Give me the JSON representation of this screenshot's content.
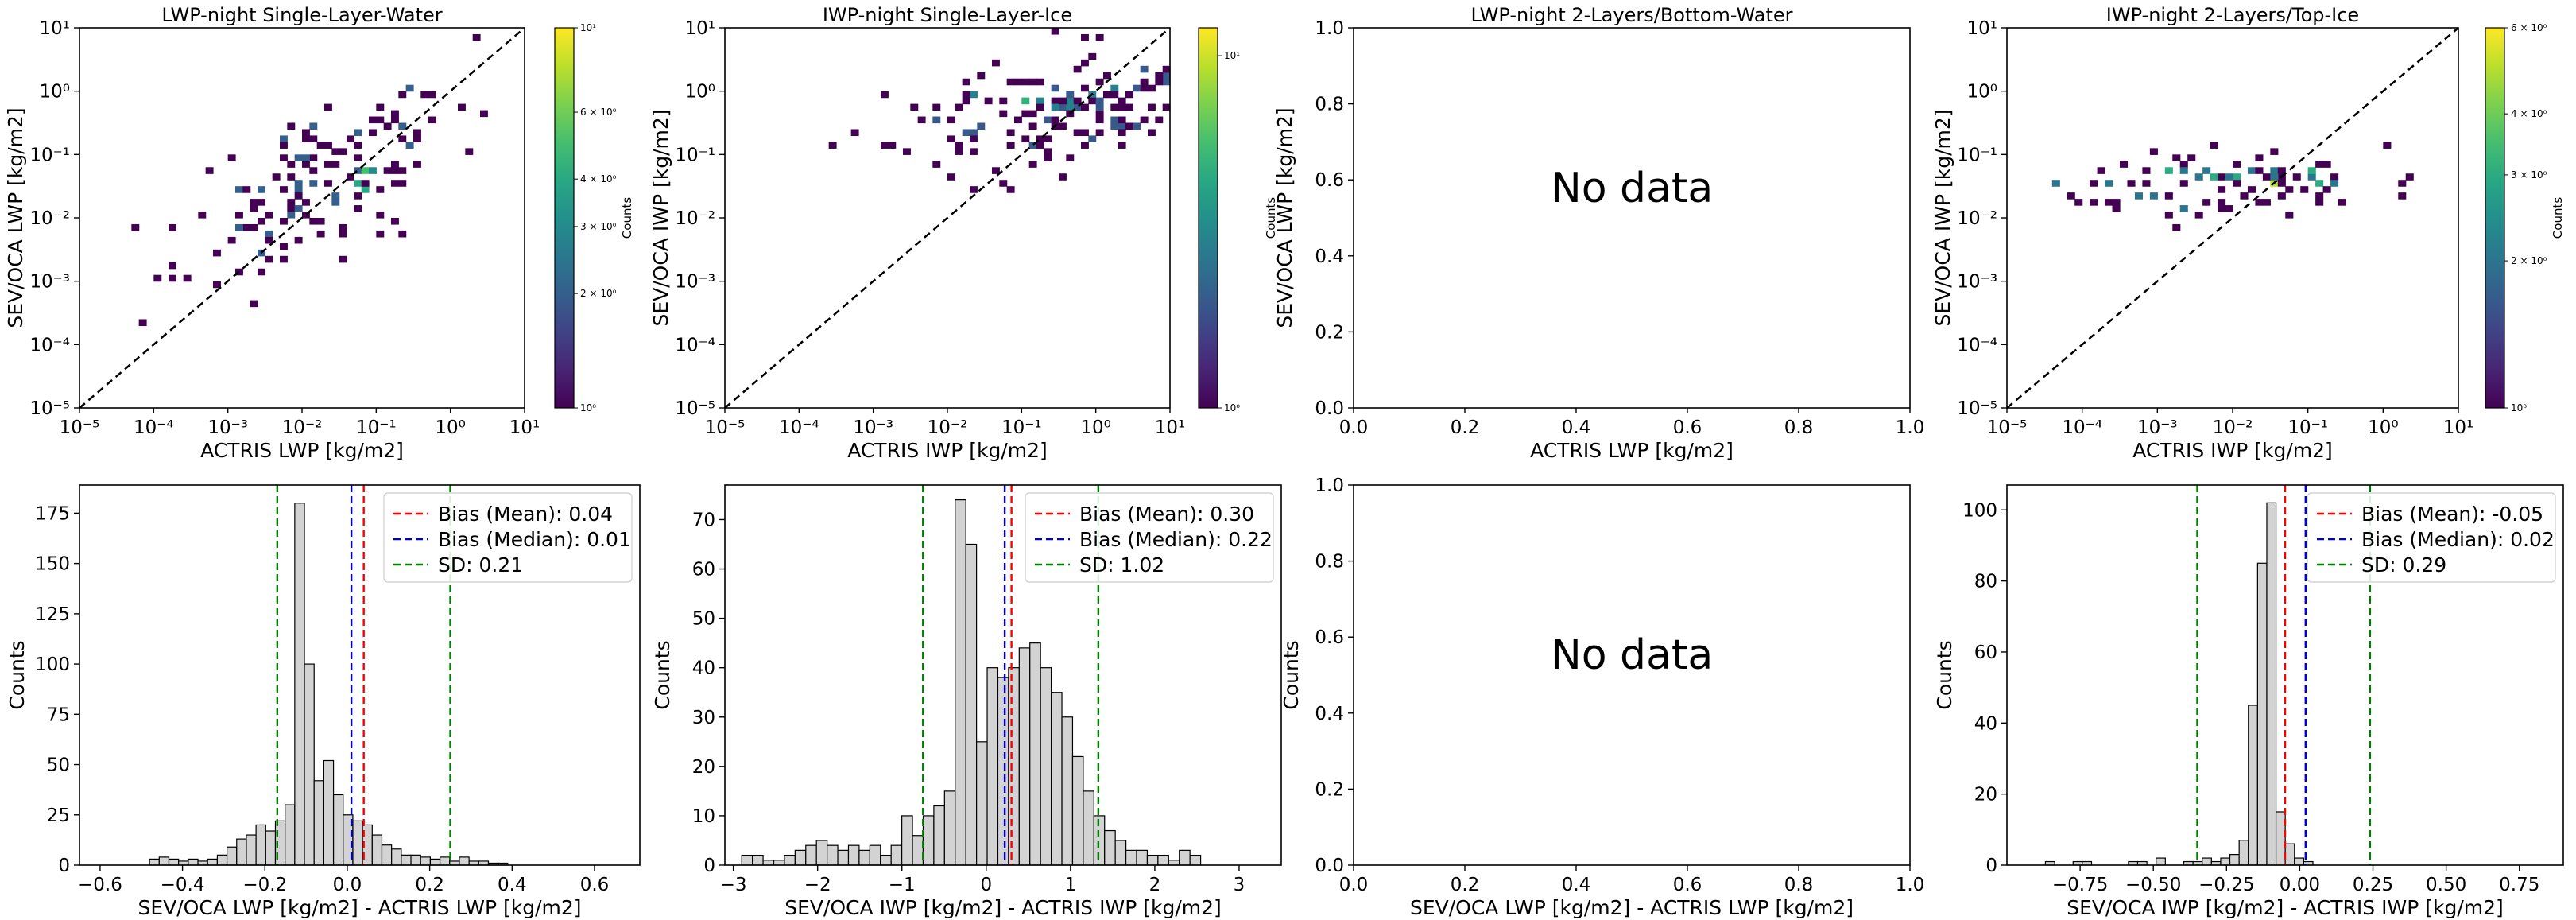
{
  "chart_data": [
    {
      "type": "heatmap",
      "title": "LWP-night Single-Layer-Water",
      "xlabel": "ACTRIS LWP [kg/m2]",
      "ylabel": "SEV/OCA LWP [kg/m2]",
      "xscale": "log",
      "yscale": "log",
      "xlim": [
        1e-05,
        10
      ],
      "ylim": [
        1e-05,
        10
      ],
      "xticks": [
        "10⁻⁵",
        "10⁻⁴",
        "10⁻³",
        "10⁻²",
        "10⁻¹",
        "10⁰",
        "10¹"
      ],
      "yticks": [
        "10⁻⁵",
        "10⁻⁴",
        "10⁻³",
        "10⁻²",
        "10⁻¹",
        "10⁰",
        "10¹"
      ],
      "identity_line": true,
      "colorbar": {
        "label": "Counts",
        "scale": "log",
        "range": [
          1,
          10
        ],
        "ticks": [
          "10⁰",
          "2 × 10⁰",
          "3 × 10⁰",
          "4 × 10⁰",
          "6 × 10⁰",
          "10¹"
        ]
      },
      "cloud": {
        "cx": 0.02,
        "cy": 0.04,
        "sx": 0.9,
        "sy": 0.75,
        "rho": 0.6,
        "n": 240,
        "density": 0.55,
        "seed": 11,
        "max_count": 10
      }
    },
    {
      "type": "heatmap",
      "title": "IWP-night Single-Layer-Ice",
      "xlabel": "ACTRIS IWP [kg/m2]",
      "ylabel": "SEV/OCA IWP [kg/m2]",
      "xscale": "log",
      "yscale": "log",
      "xlim": [
        1e-05,
        10
      ],
      "ylim": [
        1e-05,
        10
      ],
      "xticks": [
        "10⁻⁵",
        "10⁻⁴",
        "10⁻³",
        "10⁻²",
        "10⁻¹",
        "10⁰",
        "10¹"
      ],
      "yticks": [
        "10⁻⁵",
        "10⁻⁴",
        "10⁻³",
        "10⁻²",
        "10⁻¹",
        "10⁰",
        "10¹"
      ],
      "identity_line": true,
      "colorbar": {
        "label": "Counts",
        "scale": "log",
        "range": [
          1,
          12
        ],
        "ticks": [
          "10⁰",
          "10¹"
        ]
      },
      "cloud": {
        "cx": 0.3,
        "cy": 0.5,
        "sx": 1.1,
        "sy": 0.45,
        "rho": 0.35,
        "n": 280,
        "density": 0.6,
        "seed": 23,
        "max_count": 12
      }
    },
    {
      "type": "heatmap",
      "title": "LWP-night 2-Layers/Bottom-Water",
      "xlabel": "ACTRIS LWP [kg/m2]",
      "ylabel": "SEV/OCA LWP [kg/m2]",
      "xlim": [
        0,
        1
      ],
      "ylim": [
        0,
        1
      ],
      "xticks": [
        "0.0",
        "0.2",
        "0.4",
        "0.6",
        "0.8",
        "1.0"
      ],
      "yticks": [
        "0.0",
        "0.2",
        "0.4",
        "0.6",
        "0.8",
        "1.0"
      ],
      "annotation": "No data"
    },
    {
      "type": "heatmap",
      "title": "IWP-night 2-Layers/Top-Ice",
      "xlabel": "ACTRIS IWP [kg/m2]",
      "ylabel": "SEV/OCA IWP [kg/m2]",
      "xscale": "log",
      "yscale": "log",
      "xlim": [
        1e-05,
        10
      ],
      "ylim": [
        1e-05,
        10
      ],
      "xticks": [
        "10⁻⁵",
        "10⁻⁴",
        "10⁻³",
        "10⁻²",
        "10⁻¹",
        "10⁰",
        "10¹"
      ],
      "yticks": [
        "10⁻⁵",
        "10⁻⁴",
        "10⁻³",
        "10⁻²",
        "10⁻¹",
        "10⁰",
        "10¹"
      ],
      "identity_line": true,
      "colorbar": {
        "label": "Counts",
        "scale": "log",
        "range": [
          1,
          6
        ],
        "ticks": [
          "10⁰",
          "2 × 10⁰",
          "3 × 10⁰",
          "4 × 10⁰",
          "6 × 10⁰"
        ]
      },
      "cloud": {
        "cx": 0.01,
        "cy": 0.035,
        "sx": 1.0,
        "sy": 0.28,
        "rho": 0.2,
        "n": 200,
        "density": 0.55,
        "seed": 37,
        "max_count": 6
      }
    },
    {
      "type": "bar",
      "subtype": "histogram",
      "xlabel": "SEV/OCA LWP [kg/m2] - ACTRIS LWP [kg/m2]",
      "ylabel": "Counts",
      "xlim": [
        -0.65,
        0.71
      ],
      "ylim": [
        0,
        189
      ],
      "xticks": [
        -0.6,
        -0.4,
        -0.2,
        0.0,
        0.2,
        0.4,
        0.6
      ],
      "xtick_labels": [
        "−0.6",
        "−0.4",
        "−0.2",
        "0.0",
        "0.2",
        "0.4",
        "0.6"
      ],
      "yticks": [
        0,
        25,
        50,
        75,
        100,
        125,
        150,
        175
      ],
      "bin_start": -0.48,
      "bin_width": 0.0235,
      "counts": [
        3,
        4,
        3,
        2,
        3,
        2,
        3,
        5,
        9,
        13,
        15,
        20,
        17,
        22,
        30,
        180,
        100,
        42,
        52,
        35,
        25,
        22,
        20,
        15,
        10,
        8,
        5,
        5,
        4,
        3,
        4,
        2,
        4,
        2,
        2,
        1,
        1
      ],
      "legend": {
        "position": "top-right",
        "entries": [
          "Bias (Mean): 0.04",
          "Bias (Median): 0.01",
          "SD: 0.21"
        ]
      },
      "vlines": [
        {
          "x": 0.04,
          "color": "#ff0000"
        },
        {
          "x": 0.01,
          "color": "#0000cc"
        },
        {
          "x": -0.17,
          "color": "#008000"
        },
        {
          "x": 0.25,
          "color": "#008000"
        }
      ]
    },
    {
      "type": "bar",
      "subtype": "histogram",
      "xlabel": "SEV/OCA IWP [kg/m2] - ACTRIS IWP [kg/m2]",
      "ylabel": "Counts",
      "xlim": [
        -3.1,
        3.5
      ],
      "ylim": [
        0,
        77
      ],
      "xticks": [
        -3,
        -2,
        -1,
        0,
        1,
        2,
        3
      ],
      "xtick_labels": [
        "−3",
        "−2",
        "−1",
        "0",
        "1",
        "2",
        "3"
      ],
      "yticks": [
        0,
        10,
        20,
        30,
        40,
        50,
        60,
        70
      ],
      "bin_start": -2.9,
      "bin_width": 0.1266,
      "counts": [
        2,
        2,
        1,
        1,
        2,
        3,
        4,
        5,
        4,
        3,
        4,
        3,
        4,
        2,
        4,
        10,
        6,
        10,
        12,
        15,
        74,
        65,
        25,
        40,
        38,
        40,
        44,
        45,
        40,
        35,
        30,
        22,
        15,
        10,
        7,
        5,
        3,
        3,
        2,
        2,
        1,
        3,
        2
      ],
      "legend": {
        "position": "top-right",
        "entries": [
          "Bias (Mean): 0.30",
          "Bias (Median): 0.22",
          "SD: 1.02"
        ]
      },
      "vlines": [
        {
          "x": 0.3,
          "color": "#ff0000"
        },
        {
          "x": 0.22,
          "color": "#0000cc"
        },
        {
          "x": -0.75,
          "color": "#008000"
        },
        {
          "x": 1.33,
          "color": "#008000"
        }
      ]
    },
    {
      "type": "bar",
      "subtype": "histogram",
      "xlabel": "SEV/OCA LWP [kg/m2] - ACTRIS LWP [kg/m2]",
      "ylabel": "Counts",
      "xlim": [
        0,
        1
      ],
      "ylim": [
        0,
        1
      ],
      "xticks": [
        0,
        0.2,
        0.4,
        0.6,
        0.8,
        1.0
      ],
      "xtick_labels": [
        "0.0",
        "0.2",
        "0.4",
        "0.6",
        "0.8",
        "1.0"
      ],
      "yticks": [
        0,
        0.2,
        0.4,
        0.6,
        0.8,
        1.0
      ],
      "ytick_labels": [
        "0.0",
        "0.2",
        "0.4",
        "0.6",
        "0.8",
        "1.0"
      ],
      "counts": [],
      "annotation": "No data"
    },
    {
      "type": "bar",
      "subtype": "histogram",
      "xlabel": "SEV/OCA IWP [kg/m2] - ACTRIS IWP [kg/m2]",
      "ylabel": "Counts",
      "xlim": [
        -1.0,
        0.9
      ],
      "ylim": [
        0,
        107
      ],
      "xticks": [
        -0.75,
        -0.5,
        -0.25,
        0.0,
        0.25,
        0.5,
        0.75
      ],
      "xtick_labels": [
        "−0.75",
        "−0.50",
        "−0.25",
        "0.00",
        "0.25",
        "0.50",
        "0.75"
      ],
      "yticks": [
        0,
        20,
        40,
        60,
        80,
        100
      ],
      "bin_start": -0.9,
      "bin_width": 0.0315,
      "counts": [
        0,
        1,
        0,
        0,
        1,
        1,
        0,
        0,
        0,
        0,
        1,
        1,
        0,
        2,
        0,
        0,
        1,
        1,
        2,
        1,
        2,
        3,
        7,
        45,
        85,
        102,
        15,
        6,
        2,
        1
      ],
      "legend": {
        "position": "top-right",
        "entries": [
          "Bias (Mean): -0.05",
          "Bias (Median): 0.02",
          "SD: 0.29"
        ]
      },
      "vlines": [
        {
          "x": -0.05,
          "color": "#ff0000"
        },
        {
          "x": 0.02,
          "color": "#0000cc"
        },
        {
          "x": -0.35,
          "color": "#008000"
        },
        {
          "x": 0.24,
          "color": "#008000"
        }
      ]
    }
  ]
}
